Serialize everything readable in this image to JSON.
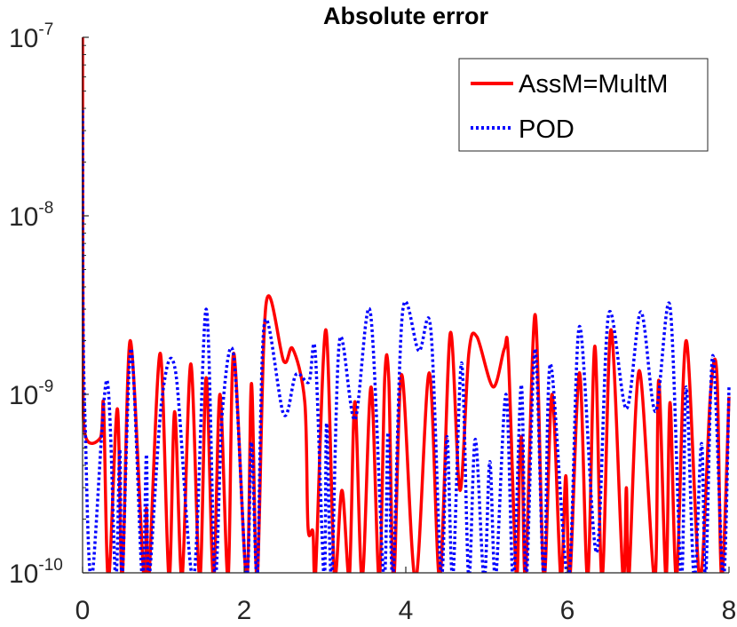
{
  "chart_data": {
    "type": "line",
    "title": "Absolute error",
    "xlabel": "",
    "ylabel": "",
    "xlim": [
      0,
      8
    ],
    "ylim": [
      1e-10,
      1e-07
    ],
    "yscale": "log",
    "grid": false,
    "legend_placement": "top-right",
    "x_ticks": [
      "0",
      "2",
      "4",
      "6",
      "8"
    ],
    "y_ticks": [
      {
        "base": "10",
        "exp": "-7"
      },
      {
        "base": "10",
        "exp": "-8"
      },
      {
        "base": "10",
        "exp": "-9"
      },
      {
        "base": "10",
        "exp": "-10"
      }
    ],
    "series": [
      {
        "name": "AssM=MultM",
        "color": "#ff0000",
        "style": "solid",
        "x": [
          0,
          0.005,
          0.03,
          0.22,
          0.26,
          0.32,
          0.43,
          0.49,
          0.59,
          0.76,
          0.79,
          0.82,
          0.96,
          1.07,
          1.14,
          1.23,
          1.34,
          1.45,
          1.53,
          1.62,
          1.7,
          1.8,
          1.87,
          2.03,
          2.09,
          2.16,
          2.27,
          2.49,
          2.6,
          2.75,
          2.79,
          2.85,
          2.88,
          3.01,
          3.12,
          3.21,
          3.3,
          3.37,
          3.46,
          3.57,
          3.67,
          3.74,
          3.79,
          3.85,
          3.95,
          4.12,
          4.29,
          4.42,
          4.55,
          4.67,
          4.78,
          4.88,
          5.08,
          5.22,
          5.27,
          5.37,
          5.41,
          5.44,
          5.48,
          5.6,
          5.71,
          5.81,
          5.92,
          5.98,
          6.03,
          6.15,
          6.25,
          6.34,
          6.43,
          6.54,
          6.69,
          6.73,
          6.76,
          6.89,
          7.08,
          7.13,
          7.22,
          7.27,
          7.35,
          7.47,
          7.64,
          7.77,
          7.85,
          7.91,
          8.0
        ],
        "y": [
          1e-07,
          2e-09,
          6e-10,
          5.7e-10,
          8.5e-10,
          3e-11,
          8.3e-10,
          3e-11,
          2e-09,
          3e-11,
          2.3e-10,
          3e-11,
          1.7e-09,
          3e-11,
          8e-10,
          3e-11,
          1.48e-09,
          3e-11,
          1.24e-09,
          3e-11,
          1e-09,
          3e-11,
          1.7e-09,
          3e-11,
          1.15e-09,
          3e-11,
          3.2e-09,
          1.53e-09,
          1.8e-09,
          9e-10,
          1.8e-10,
          1.7e-10,
          3e-11,
          2.3e-09,
          3e-11,
          2.9e-10,
          3e-11,
          9.1e-10,
          3e-11,
          1.1e-09,
          3e-11,
          1.24e-09,
          1.2e-09,
          3e-11,
          1.29e-09,
          3e-11,
          1.32e-09,
          3e-11,
          2.2e-09,
          2.9e-10,
          1.7e-09,
          2.1e-09,
          1.1e-09,
          1.8e-09,
          1.6e-09,
          3e-11,
          4.3e-10,
          5.1e-10,
          3e-11,
          2.8e-09,
          3e-11,
          1e-09,
          3e-11,
          3.5e-10,
          3e-11,
          1.32e-09,
          3e-11,
          1.86e-09,
          3e-11,
          2.3e-09,
          3e-11,
          3e-10,
          3e-11,
          1.36e-09,
          3e-11,
          1.2e-09,
          3e-11,
          9e-10,
          3e-11,
          2e-09,
          3e-11,
          1e-09,
          1.29e-09,
          3e-11,
          9.7e-10
        ]
      },
      {
        "name": "POD",
        "color": "#0000ff",
        "style": "dotted",
        "x": [
          0,
          0.005,
          0.03,
          0.11,
          0.3,
          0.41,
          0.46,
          0.49,
          0.6,
          0.74,
          0.79,
          0.82,
          0.98,
          1.15,
          1.37,
          1.53,
          1.64,
          1.73,
          1.87,
          2.03,
          2.09,
          2.16,
          2.25,
          2.49,
          2.64,
          2.8,
          2.88,
          2.99,
          3.02,
          3.08,
          3.18,
          3.37,
          3.56,
          3.73,
          3.78,
          3.84,
          3.96,
          4.16,
          4.31,
          4.44,
          4.51,
          4.58,
          4.69,
          4.78,
          4.86,
          4.97,
          5.04,
          5.11,
          5.24,
          5.33,
          5.43,
          5.49,
          5.6,
          5.71,
          5.79,
          6.01,
          6.15,
          6.36,
          6.51,
          6.73,
          6.91,
          7.09,
          7.27,
          7.41,
          7.47,
          7.57,
          7.66,
          7.71,
          7.8,
          7.93,
          8.0
        ],
        "y": [
          3.9e-08,
          3e-09,
          7.4e-10,
          3e-11,
          1.2e-09,
          3e-11,
          4.9e-10,
          3e-11,
          1.8e-09,
          3e-11,
          4.6e-10,
          3e-11,
          9.3e-10,
          1.35e-09,
          3e-11,
          3e-09,
          3e-11,
          8e-10,
          1.65e-09,
          3e-11,
          5.4e-10,
          3e-11,
          2.5e-09,
          7.7e-10,
          1.29e-09,
          1.17e-09,
          1.7e-09,
          3e-11,
          6.9e-10,
          3e-11,
          2e-09,
          7.2e-10,
          2.9e-09,
          3e-11,
          6.1e-10,
          3e-11,
          2.9e-09,
          1.75e-09,
          2.3e-09,
          3e-11,
          5.8e-10,
          3e-11,
          1.5e-09,
          3e-11,
          5.6e-10,
          3e-11,
          4.2e-10,
          3e-11,
          1e-09,
          3e-11,
          1.13e-09,
          3e-11,
          1.8e-09,
          3e-11,
          1.48e-09,
          3e-11,
          2.4e-09,
          1.3e-10,
          2.8e-09,
          8.3e-10,
          2.9e-09,
          8e-10,
          3.1e-09,
          3e-11,
          1.1e-09,
          3e-11,
          5.3e-10,
          3e-11,
          1.65e-09,
          3e-11,
          1.1e-09
        ]
      }
    ]
  }
}
